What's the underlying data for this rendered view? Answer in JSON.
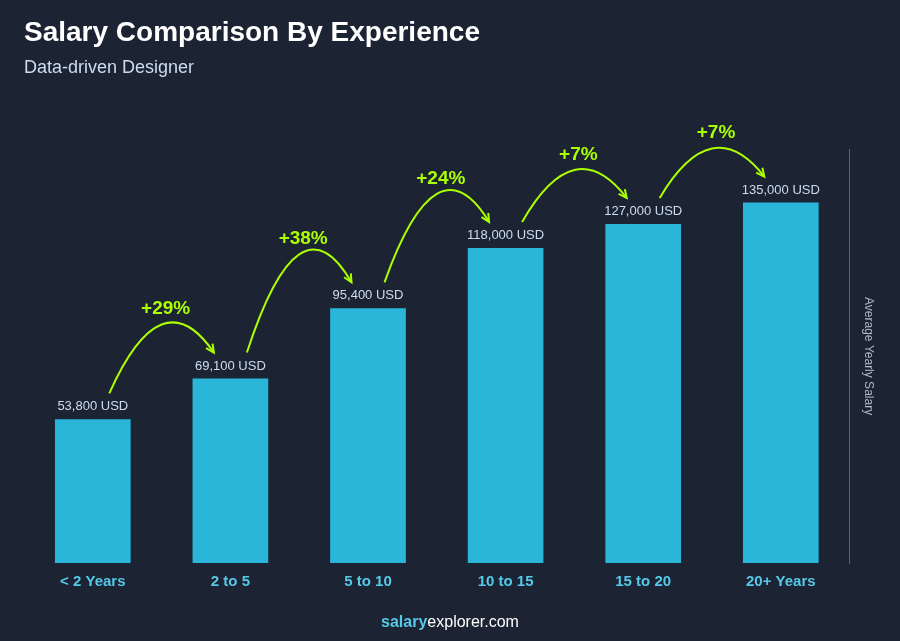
{
  "chart_data": {
    "type": "bar",
    "title": "Salary Comparison By Experience",
    "subtitle": "Data-driven Designer",
    "y_label": "Average Yearly Salary",
    "categories": [
      "< 2 Years",
      "2 to 5",
      "5 to 10",
      "10 to 15",
      "15 to 20",
      "20+ Years"
    ],
    "values": [
      53800,
      69100,
      95400,
      118000,
      127000,
      135000
    ],
    "value_labels": [
      "53,800 USD",
      "69,100 USD",
      "95,400 USD",
      "118,000 USD",
      "127,000 USD",
      "135,000 USD"
    ],
    "data_labels": true,
    "annotations": [
      "+29%",
      "+38%",
      "+24%",
      "+7%",
      "+7%"
    ],
    "footer": [
      "salary",
      "explorer.com"
    ],
    "color": "#29B6D8",
    "ylim": [
      0,
      155000
    ],
    "grid": false,
    "tick_labels": "x"
  }
}
